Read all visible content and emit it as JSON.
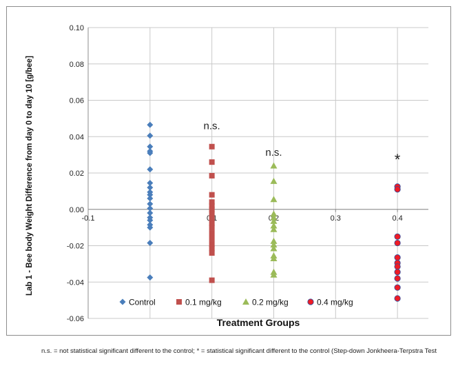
{
  "chart_data": {
    "type": "scatter",
    "title": "",
    "xlabel": "Treatment Groups",
    "ylabel": "Lab 1 - Bee body Weight Difference from day 0 to day 10 [g/bee]",
    "xlim": [
      -0.1,
      0.45
    ],
    "ylim": [
      -0.06,
      0.1
    ],
    "x_ticks": [
      {
        "value": -0.1,
        "label": "-0.1"
      },
      {
        "value": 0,
        "label": "0"
      },
      {
        "value": 0.1,
        "label": "0.1"
      },
      {
        "value": 0.2,
        "label": "0.2"
      },
      {
        "value": 0.3,
        "label": "0.3"
      },
      {
        "value": 0.4,
        "label": "0.4"
      }
    ],
    "y_ticks": [
      {
        "value": -0.06,
        "label": "-0.06"
      },
      {
        "value": -0.04,
        "label": "-0.04"
      },
      {
        "value": -0.02,
        "label": "-0.02"
      },
      {
        "value": 0,
        "label": "0.00"
      },
      {
        "value": 0.02,
        "label": "0.02"
      },
      {
        "value": 0.04,
        "label": "0.04"
      },
      {
        "value": 0.06,
        "label": "0.06"
      },
      {
        "value": 0.08,
        "label": "0.08"
      },
      {
        "value": 0.1,
        "label": "0.10"
      }
    ],
    "grid": true,
    "legend_position": "bottom-inside",
    "series": [
      {
        "name": "Control",
        "marker": "diamond",
        "color": "#4a7ebb",
        "x": 0,
        "values": [
          0.0465,
          0.0405,
          0.0345,
          0.032,
          0.031,
          0.022,
          0.0145,
          0.012,
          0.0095,
          0.008,
          0.006,
          0.003,
          0.0005,
          -0.002,
          -0.0045,
          -0.006,
          -0.0085,
          -0.01,
          -0.0185,
          -0.0375
        ]
      },
      {
        "name": "0.1 mg/kg",
        "marker": "square",
        "color": "#c0504d",
        "x": 0.1,
        "values": [
          0.0345,
          0.026,
          0.0185,
          0.008,
          0.004,
          0.002,
          0.0,
          -0.0025,
          -0.005,
          -0.0075,
          -0.01,
          -0.013,
          -0.016,
          -0.019,
          -0.0215,
          -0.024,
          -0.039
        ]
      },
      {
        "name": "0.2 mg/kg",
        "marker": "triangle",
        "color": "#9bbb59",
        "x": 0.2,
        "values": [
          0.024,
          0.0155,
          0.0055,
          -0.0025,
          -0.0045,
          -0.0065,
          -0.009,
          -0.011,
          -0.0175,
          -0.0195,
          -0.0215,
          -0.0255,
          -0.027,
          -0.0345,
          -0.036
        ]
      },
      {
        "name": "0.4 mg/kg",
        "marker": "circle",
        "color": "#ee1c25",
        "x": 0.4,
        "values": [
          0.0125,
          0.011,
          -0.015,
          -0.0185,
          -0.0265,
          -0.0295,
          -0.0315,
          -0.0345,
          -0.038,
          -0.043,
          -0.049
        ]
      }
    ],
    "annotations": [
      {
        "text": "n.s.",
        "x": 0.1,
        "y": 0.044,
        "size": 15
      },
      {
        "text": "n.s.",
        "x": 0.2,
        "y": 0.0295,
        "size": 15
      },
      {
        "text": "*",
        "x": 0.4,
        "y": 0.0245,
        "size": 22
      }
    ]
  },
  "footnote": "n.s. = not statistical significant different to the control; * = statistical significant different to the control (Step-down Jonkheera-Terpstra Test"
}
